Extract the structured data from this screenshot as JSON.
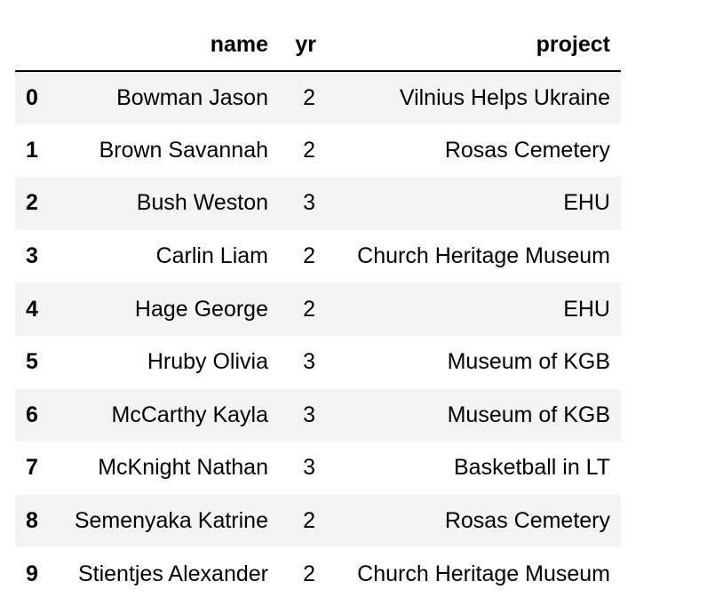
{
  "table": {
    "columns": [
      "",
      "name",
      "yr",
      "project"
    ],
    "rows": [
      {
        "index": "0",
        "name": "Bowman Jason",
        "yr": "2",
        "project": "Vilnius Helps Ukraine"
      },
      {
        "index": "1",
        "name": "Brown Savannah",
        "yr": "2",
        "project": "Rosas Cemetery"
      },
      {
        "index": "2",
        "name": "Bush Weston",
        "yr": "3",
        "project": "EHU"
      },
      {
        "index": "3",
        "name": "Carlin Liam",
        "yr": "2",
        "project": "Church Heritage Museum"
      },
      {
        "index": "4",
        "name": "Hage George",
        "yr": "2",
        "project": "EHU"
      },
      {
        "index": "5",
        "name": "Hruby Olivia",
        "yr": "3",
        "project": "Museum of KGB"
      },
      {
        "index": "6",
        "name": "McCarthy Kayla",
        "yr": "3",
        "project": "Museum of KGB"
      },
      {
        "index": "7",
        "name": "McKnight Nathan",
        "yr": "3",
        "project": "Basketball in LT"
      },
      {
        "index": "8",
        "name": "Semenyaka Katrine",
        "yr": "2",
        "project": "Rosas Cemetery"
      },
      {
        "index": "9",
        "name": "Stientjes Alexander",
        "yr": "2",
        "project": "Church Heritage Museum"
      }
    ]
  },
  "colors": {
    "striped_row": "#f4f4f4",
    "plain_row": "#ffffff",
    "header_rule": "#000000"
  }
}
